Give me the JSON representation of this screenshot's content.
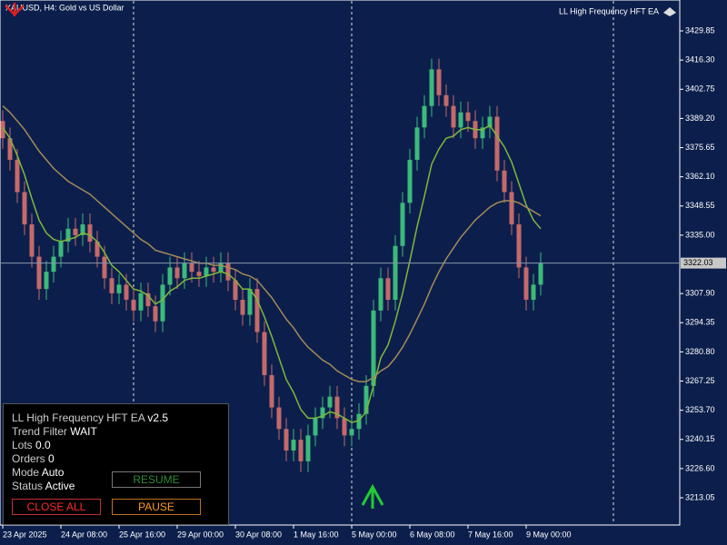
{
  "header": {
    "symbol_title": "XAUUSD, H4:  Gold vs US Dollar",
    "ea_name": "LL High Frequency HFT EA"
  },
  "chart_data": {
    "type": "candlestick",
    "categories": [
      "23 Apr 2025",
      null,
      null,
      null,
      null,
      null,
      null,
      null,
      "24 Apr 08:00",
      null,
      null,
      null,
      null,
      null,
      null,
      null,
      "25 Apr 16:00",
      null,
      null,
      null,
      null,
      null,
      null,
      null,
      "29 Apr 00:00",
      null,
      null,
      null,
      null,
      null,
      null,
      null,
      "30 Apr 08:00",
      null,
      null,
      null,
      null,
      null,
      null,
      null,
      "1 May 16:00",
      null,
      null,
      null,
      null,
      null,
      null,
      null,
      "5 May 00:00",
      null,
      null,
      null,
      null,
      null,
      null,
      null,
      "6 May 08:00",
      null,
      null,
      null,
      null,
      null,
      null,
      null,
      "7 May 16:00",
      null,
      null,
      null,
      null,
      null,
      null,
      null,
      "9 May 00:00",
      null,
      null
    ],
    "open": [
      3388,
      3380,
      3370,
      3355,
      3340,
      3325,
      3310,
      3318,
      3325,
      3332,
      3338,
      3335,
      3340,
      3332,
      3325,
      3315,
      3308,
      3312,
      3305,
      3300,
      3308,
      3302,
      3295,
      3312,
      3320,
      3315,
      3322,
      3318,
      3316,
      3320,
      3318,
      3322,
      3314,
      3305,
      3298,
      3310,
      3290,
      3270,
      3255,
      3245,
      3235,
      3240,
      3230,
      3242,
      3250,
      3255,
      3260,
      3250,
      3242,
      3245,
      3252,
      3265,
      3300,
      3315,
      3305,
      3330,
      3350,
      3370,
      3385,
      3395,
      3412,
      3400,
      3395,
      3385,
      3392,
      3388,
      3380,
      3385,
      3390,
      3365,
      3355,
      3340,
      3320,
      3305,
      3312
    ],
    "high": [
      3393,
      3385,
      3375,
      3360,
      3345,
      3330,
      3323,
      3330,
      3337,
      3343,
      3343,
      3345,
      3345,
      3337,
      3330,
      3320,
      3317,
      3317,
      3310,
      3313,
      3313,
      3307,
      3317,
      3325,
      3325,
      3327,
      3327,
      3323,
      3325,
      3325,
      3327,
      3327,
      3319,
      3310,
      3315,
      3315,
      3295,
      3275,
      3260,
      3250,
      3245,
      3245,
      3247,
      3255,
      3260,
      3265,
      3265,
      3255,
      3250,
      3257,
      3270,
      3305,
      3320,
      3320,
      3335,
      3355,
      3375,
      3390,
      3400,
      3417,
      3417,
      3405,
      3400,
      3397,
      3397,
      3393,
      3390,
      3395,
      3395,
      3370,
      3360,
      3345,
      3325,
      3317,
      3327
    ],
    "low": [
      3375,
      3365,
      3350,
      3335,
      3320,
      3305,
      3305,
      3313,
      3320,
      3327,
      3330,
      3330,
      3327,
      3320,
      3310,
      3303,
      3303,
      3300,
      3295,
      3295,
      3297,
      3290,
      3290,
      3307,
      3310,
      3310,
      3313,
      3311,
      3311,
      3313,
      3313,
      3309,
      3300,
      3293,
      3293,
      3285,
      3265,
      3250,
      3240,
      3230,
      3230,
      3225,
      3225,
      3237,
      3245,
      3250,
      3245,
      3237,
      3237,
      3240,
      3247,
      3260,
      3295,
      3300,
      3300,
      3325,
      3345,
      3365,
      3380,
      3390,
      3395,
      3390,
      3380,
      3380,
      3383,
      3375,
      3375,
      3380,
      3360,
      3350,
      3335,
      3315,
      3300,
      3300,
      3307
    ],
    "close": [
      3380,
      3370,
      3355,
      3340,
      3325,
      3310,
      3318,
      3325,
      3332,
      3338,
      3335,
      3340,
      3332,
      3325,
      3315,
      3308,
      3312,
      3305,
      3300,
      3308,
      3302,
      3295,
      3312,
      3320,
      3315,
      3322,
      3318,
      3316,
      3320,
      3318,
      3322,
      3314,
      3305,
      3298,
      3310,
      3290,
      3270,
      3255,
      3245,
      3235,
      3240,
      3230,
      3242,
      3250,
      3255,
      3260,
      3250,
      3242,
      3245,
      3252,
      3265,
      3300,
      3315,
      3305,
      3330,
      3350,
      3370,
      3385,
      3395,
      3412,
      3400,
      3395,
      3385,
      3392,
      3388,
      3380,
      3385,
      3390,
      3365,
      3355,
      3340,
      3320,
      3305,
      3312,
      3322.03
    ],
    "up_color": "#3cba7a",
    "down_color": "#c46a6a",
    "series": [
      {
        "color": "#7fb83a",
        "values": [
          3385,
          3380,
          3372,
          3363,
          3352,
          3342,
          3336,
          3333,
          3332,
          3333,
          3334,
          3336,
          3335,
          3332,
          3327,
          3321,
          3318,
          3314,
          3310,
          3309,
          3307,
          3303,
          3305,
          3309,
          3311,
          3314,
          3315,
          3315,
          3316,
          3317,
          3318,
          3317,
          3314,
          3310,
          3310,
          3305,
          3297,
          3288,
          3278,
          3268,
          3262,
          3254,
          3250,
          3250,
          3251,
          3253,
          3252,
          3250,
          3248,
          3249,
          3253,
          3265,
          3278,
          3284,
          3295,
          3308,
          3323,
          3339,
          3353,
          3368,
          3375,
          3380,
          3381,
          3384,
          3385,
          3384,
          3384,
          3386,
          3381,
          3376,
          3369,
          3359,
          3349,
          3342,
          3338
        ]
      },
      {
        "color": "#a58a55",
        "values": [
          3395,
          3392,
          3388,
          3384,
          3379,
          3374,
          3370,
          3366,
          3363,
          3360,
          3358,
          3356,
          3354,
          3351,
          3348,
          3345,
          3342,
          3339,
          3336,
          3333,
          3331,
          3328,
          3327,
          3326,
          3325,
          3324,
          3323,
          3322,
          3322,
          3321,
          3321,
          3320,
          3319,
          3317,
          3316,
          3314,
          3310,
          3306,
          3301,
          3296,
          3292,
          3287,
          3283,
          3280,
          3277,
          3275,
          3272,
          3270,
          3268,
          3267,
          3267,
          3269,
          3272,
          3274,
          3278,
          3283,
          3289,
          3296,
          3303,
          3311,
          3318,
          3324,
          3329,
          3334,
          3338,
          3342,
          3345,
          3348,
          3350,
          3351,
          3351,
          3350,
          3348,
          3346,
          3344
        ]
      }
    ],
    "last_price": 3322.03,
    "ylim": [
      3200.4,
      3444.2
    ],
    "yticks": [
      3429.85,
      {
        "value": 3416.3,
        "label": "3416.30"
      },
      3402.75,
      {
        "value": 3389.2,
        "label": "3389.20"
      },
      3375.65,
      {
        "value": 3362.1,
        "label": "3362.10"
      },
      3348.55,
      {
        "value": 3335,
        "label": "3335.00"
      },
      {
        "value": 3307.9,
        "label": "3307.90"
      },
      3294.35,
      {
        "value": 3280.8,
        "label": "3280.80"
      },
      3267.25,
      {
        "value": 3253.7,
        "label": "3253.70"
      },
      3240.15,
      {
        "value": 3226.6,
        "label": "3226.60"
      },
      3213.05
    ]
  },
  "panel": {
    "title": "LL High Frequency HFT EA",
    "version": "v2.5",
    "rows": [
      [
        "Trend Filter",
        "WAIT"
      ],
      [
        "Lots",
        "0.0"
      ],
      [
        "Orders",
        "0"
      ],
      [
        "Mode",
        "Auto"
      ],
      [
        "Status",
        "Active"
      ]
    ],
    "buttons": {
      "resume": "RESUME",
      "close_all": "CLOSE ALL",
      "pause": "PAUSE"
    }
  }
}
